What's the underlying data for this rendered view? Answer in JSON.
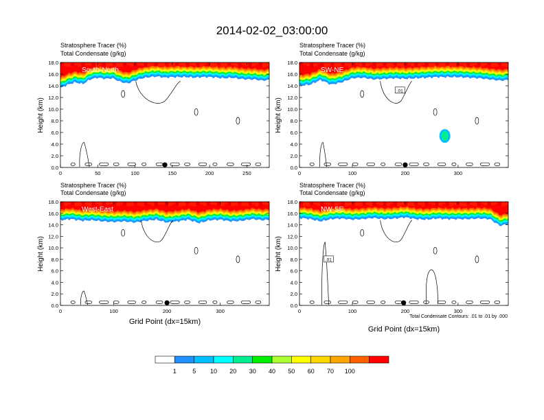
{
  "page": {
    "title": "2014-02-02_03:00:00",
    "footnote": "Total Condensate Contours: .01 to .01 by .000"
  },
  "chart_data": [
    {
      "type": "heatmap",
      "key": "sn",
      "panel_label": "South-North",
      "header_line1": "Stratosphere Tracer   (%)",
      "header_line2": "Total Condensate   (g/kg)",
      "ylabel": "Height (km)",
      "xlabel": "",
      "xlim": [
        0,
        280
      ],
      "ylim": [
        0,
        18
      ],
      "xticks": [
        0,
        50,
        100,
        150,
        200,
        250
      ],
      "yticks": [
        0.0,
        2.0,
        4.0,
        6.0,
        8.0,
        10.0,
        12.0,
        14.0,
        16.0,
        18.0
      ],
      "tracer_lower_edge_km": [
        [
          0,
          13.6
        ],
        [
          10,
          14.2
        ],
        [
          20,
          14.6
        ],
        [
          30,
          14.3
        ],
        [
          40,
          15.1
        ],
        [
          50,
          15.4
        ],
        [
          60,
          15.2
        ],
        [
          70,
          15.3
        ],
        [
          80,
          14.7
        ],
        [
          90,
          14.4
        ],
        [
          100,
          14.9
        ],
        [
          110,
          15.3
        ],
        [
          120,
          15.5
        ],
        [
          130,
          15.6
        ],
        [
          140,
          15.4
        ],
        [
          150,
          15.5
        ],
        [
          160,
          15.5
        ],
        [
          170,
          15.5
        ],
        [
          180,
          15.4
        ],
        [
          190,
          15.5
        ],
        [
          200,
          15.5
        ],
        [
          210,
          15.4
        ],
        [
          220,
          15.3
        ],
        [
          230,
          15.4
        ],
        [
          240,
          15.2
        ],
        [
          250,
          15.1
        ],
        [
          260,
          15.1
        ],
        [
          270,
          14.9
        ],
        [
          280,
          15.0
        ]
      ],
      "marker_x": 140,
      "contour_label": ""
    },
    {
      "type": "heatmap",
      "key": "swne",
      "panel_label": "SW-NE",
      "header_line1": "Stratosphere Tracer   (%)",
      "header_line2": "Total Condensate   (g/kg)",
      "ylabel": "Height (km)",
      "xlabel": "",
      "xlim": [
        0,
        395
      ],
      "ylim": [
        0,
        18
      ],
      "xticks": [
        0,
        100,
        200,
        300
      ],
      "yticks": [
        0.0,
        2.0,
        4.0,
        6.0,
        8.0,
        10.0,
        12.0,
        14.0,
        16.0,
        18.0
      ],
      "tracer_lower_edge_km": [
        [
          0,
          14.0
        ],
        [
          20,
          14.2
        ],
        [
          40,
          15.0
        ],
        [
          60,
          14.2
        ],
        [
          80,
          14.6
        ],
        [
          100,
          15.3
        ],
        [
          120,
          15.4
        ],
        [
          140,
          15.1
        ],
        [
          160,
          15.2
        ],
        [
          180,
          15.3
        ],
        [
          200,
          15.2
        ],
        [
          220,
          15.3
        ],
        [
          240,
          15.4
        ],
        [
          260,
          15.5
        ],
        [
          280,
          15.5
        ],
        [
          300,
          15.5
        ],
        [
          320,
          15.4
        ],
        [
          340,
          15.3
        ],
        [
          360,
          15.1
        ],
        [
          380,
          14.9
        ],
        [
          395,
          15.0
        ]
      ],
      "marker_x": 200,
      "contour_label": ".01"
    },
    {
      "type": "heatmap",
      "key": "we",
      "panel_label": "West-East",
      "header_line1": "Stratosphere Tracer   (%)",
      "header_line2": "Total Condensate   (g/kg)",
      "ylabel": "Height (km)",
      "xlabel": "Grid Point (dx=15km)",
      "xlim": [
        0,
        392
      ],
      "ylim": [
        0,
        18
      ],
      "xticks": [
        0,
        100,
        200,
        300
      ],
      "yticks": [
        0.0,
        2.0,
        4.0,
        6.0,
        8.0,
        10.0,
        12.0,
        14.0,
        16.0,
        18.0
      ],
      "tracer_lower_edge_km": [
        [
          0,
          14.8
        ],
        [
          20,
          15.0
        ],
        [
          40,
          14.7
        ],
        [
          60,
          14.8
        ],
        [
          80,
          14.6
        ],
        [
          100,
          14.5
        ],
        [
          120,
          14.6
        ],
        [
          140,
          14.4
        ],
        [
          160,
          14.7
        ],
        [
          180,
          14.9
        ],
        [
          200,
          14.4
        ],
        [
          220,
          14.6
        ],
        [
          240,
          14.9
        ],
        [
          260,
          14.3
        ],
        [
          280,
          14.8
        ],
        [
          300,
          14.9
        ],
        [
          320,
          14.6
        ],
        [
          340,
          14.7
        ],
        [
          360,
          15.0
        ],
        [
          380,
          14.8
        ],
        [
          392,
          14.9
        ]
      ],
      "marker_x": 200,
      "contour_label": ""
    },
    {
      "type": "heatmap",
      "key": "nwse",
      "panel_label": "NW-SE",
      "header_line1": "Stratosphere Tracer   (%)",
      "header_line2": "Total Condensate   (g/kg)",
      "ylabel": "Height (km)",
      "xlabel": "Grid Point (dx=15km)",
      "xlim": [
        0,
        395
      ],
      "ylim": [
        0,
        18
      ],
      "xticks": [
        0,
        100,
        200,
        300
      ],
      "yticks": [
        0.0,
        2.0,
        4.0,
        6.0,
        8.0,
        10.0,
        12.0,
        14.0,
        16.0,
        18.0
      ],
      "tracer_lower_edge_km": [
        [
          0,
          15.2
        ],
        [
          20,
          15.0
        ],
        [
          40,
          14.6
        ],
        [
          60,
          15.0
        ],
        [
          80,
          15.1
        ],
        [
          100,
          14.9
        ],
        [
          120,
          15.0
        ],
        [
          140,
          15.2
        ],
        [
          160,
          15.0
        ],
        [
          180,
          15.1
        ],
        [
          200,
          15.3
        ],
        [
          220,
          15.0
        ],
        [
          240,
          14.9
        ],
        [
          260,
          15.1
        ],
        [
          280,
          15.0
        ],
        [
          300,
          15.0
        ],
        [
          320,
          15.0
        ],
        [
          340,
          15.1
        ],
        [
          360,
          15.0
        ],
        [
          380,
          13.8
        ],
        [
          395,
          14.2
        ]
      ],
      "marker_x": 197,
      "contour_label": ".01"
    }
  ],
  "colorbar": {
    "tick_labels": [
      "1",
      "5",
      "10",
      "20",
      "30",
      "40",
      "50",
      "60",
      "70",
      "100"
    ],
    "colors": [
      "#ffffff",
      "#1e90ff",
      "#00bfff",
      "#00ffff",
      "#00ee90",
      "#00ee00",
      "#adff2f",
      "#ffff00",
      "#ffd700",
      "#ffa500",
      "#ff6000",
      "#ff0000"
    ]
  }
}
